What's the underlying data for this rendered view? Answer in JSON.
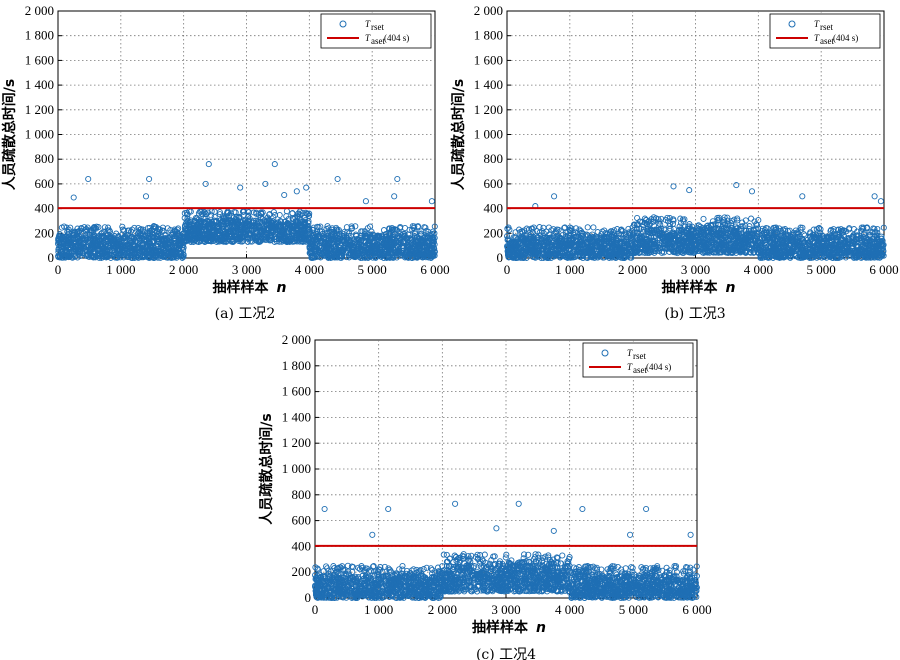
{
  "chart_data": [
    {
      "type": "scatter",
      "caption": "(a) 工况2",
      "xlabel": "抽样样本",
      "xlabel_var": "n",
      "ylabel": "人员疏散总时间/s",
      "xlim": [
        0,
        6000
      ],
      "ylim": [
        0,
        2000
      ],
      "x_ticks": [
        "0",
        "1 000",
        "2 000",
        "3 000",
        "4 000",
        "5 000",
        "6 000"
      ],
      "y_ticks": [
        "0",
        "200",
        "400",
        "600",
        "800",
        "1 000",
        "1 200",
        "1 400",
        "1 600",
        "1 800",
        "2 000"
      ],
      "grid": true,
      "legend_position": "top-right",
      "series": [
        {
          "name": "T",
          "name_sub": "rset",
          "marker": "circle",
          "color": "#1f6fb4"
        },
        {
          "name": "T",
          "name_sub": "aset",
          "name_suffix": "(404 s)",
          "line": "solid",
          "color": "#cc0000",
          "value": 404
        }
      ],
      "segments": [
        {
          "x_range": [
            0,
            2000
          ],
          "typical_range": [
            0,
            260
          ]
        },
        {
          "x_range": [
            2000,
            4000
          ],
          "typical_range": [
            130,
            380
          ]
        },
        {
          "x_range": [
            4000,
            6000
          ],
          "typical_range": [
            0,
            260
          ]
        }
      ],
      "outliers": [
        [
          480,
          640
        ],
        [
          250,
          490
        ],
        [
          1450,
          640
        ],
        [
          1400,
          500
        ],
        [
          2400,
          760
        ],
        [
          2350,
          600
        ],
        [
          2900,
          570
        ],
        [
          3450,
          760
        ],
        [
          3300,
          600
        ],
        [
          3800,
          540
        ],
        [
          3600,
          510
        ],
        [
          3950,
          570
        ],
        [
          4450,
          640
        ],
        [
          4900,
          460
        ],
        [
          5400,
          640
        ],
        [
          5350,
          500
        ],
        [
          5950,
          460
        ]
      ]
    },
    {
      "type": "scatter",
      "caption": "(b) 工况3",
      "xlabel": "抽样样本",
      "xlabel_var": "n",
      "ylabel": "人员疏散总时间/s",
      "xlim": [
        0,
        6000
      ],
      "ylim": [
        0,
        2000
      ],
      "x_ticks": [
        "0",
        "1 000",
        "2 000",
        "3 000",
        "4 000",
        "5 000",
        "6 000"
      ],
      "y_ticks": [
        "0",
        "200",
        "400",
        "600",
        "800",
        "1 000",
        "1 200",
        "1 400",
        "1 600",
        "1 800",
        "2 000"
      ],
      "grid": true,
      "legend_position": "top-right",
      "series": [
        {
          "name": "T",
          "name_sub": "rset",
          "marker": "circle",
          "color": "#1f6fb4"
        },
        {
          "name": "T",
          "name_sub": "aset",
          "name_suffix": "(404 s)",
          "line": "solid",
          "color": "#cc0000",
          "value": 404
        }
      ],
      "segments": [
        {
          "x_range": [
            0,
            2000
          ],
          "typical_range": [
            0,
            250
          ]
        },
        {
          "x_range": [
            2000,
            4000
          ],
          "typical_range": [
            40,
            330
          ]
        },
        {
          "x_range": [
            4000,
            6000
          ],
          "typical_range": [
            0,
            250
          ]
        }
      ],
      "outliers": [
        [
          750,
          500
        ],
        [
          450,
          420
        ],
        [
          2650,
          580
        ],
        [
          2900,
          550
        ],
        [
          3650,
          590
        ],
        [
          3900,
          540
        ],
        [
          4700,
          500
        ],
        [
          5850,
          500
        ],
        [
          5950,
          460
        ]
      ]
    },
    {
      "type": "scatter",
      "caption": "(c) 工况4",
      "xlabel": "抽样样本",
      "xlabel_var": "n",
      "ylabel": "人员疏散总时间/s",
      "xlim": [
        0,
        6000
      ],
      "ylim": [
        0,
        2000
      ],
      "x_ticks": [
        "0",
        "1 000",
        "2 000",
        "3 000",
        "4 000",
        "5 000",
        "6 000"
      ],
      "y_ticks": [
        "0",
        "200",
        "400",
        "600",
        "800",
        "1 000",
        "1 200",
        "1 400",
        "1 600",
        "1 800",
        "2 000"
      ],
      "grid": true,
      "legend_position": "top-right",
      "series": [
        {
          "name": "T",
          "name_sub": "rset",
          "marker": "circle",
          "color": "#1f6fb4"
        },
        {
          "name": "T",
          "name_sub": "aset",
          "name_suffix": "(404 s)",
          "line": "solid",
          "color": "#cc0000",
          "value": 404
        }
      ],
      "segments": [
        {
          "x_range": [
            0,
            2000
          ],
          "typical_range": [
            0,
            250
          ]
        },
        {
          "x_range": [
            2000,
            4000
          ],
          "typical_range": [
            50,
            340
          ]
        },
        {
          "x_range": [
            4000,
            6000
          ],
          "typical_range": [
            0,
            250
          ]
        }
      ],
      "outliers": [
        [
          150,
          690
        ],
        [
          1150,
          690
        ],
        [
          900,
          490
        ],
        [
          2200,
          730
        ],
        [
          2850,
          540
        ],
        [
          3200,
          730
        ],
        [
          3750,
          520
        ],
        [
          4200,
          690
        ],
        [
          5200,
          690
        ],
        [
          4950,
          490
        ],
        [
          5900,
          490
        ]
      ]
    }
  ]
}
